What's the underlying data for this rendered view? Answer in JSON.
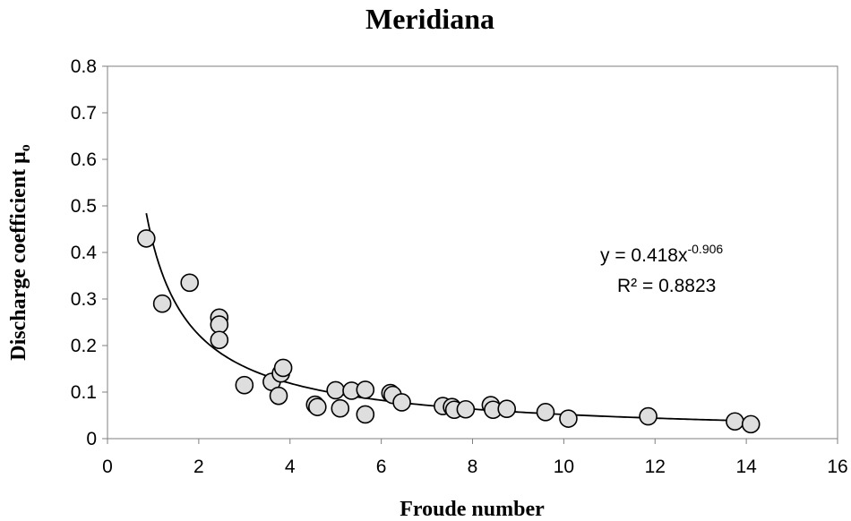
{
  "chart_data": {
    "type": "scatter",
    "title": "Meridiana",
    "xlabel": "Froude number",
    "ylabel": "Discharge coefficient μ",
    "ylabel_subscript": "o",
    "xlim": [
      0,
      16
    ],
    "ylim": [
      0,
      0.8
    ],
    "xticks": [
      "0",
      "2",
      "4",
      "6",
      "8",
      "10",
      "12",
      "14",
      "16"
    ],
    "yticks": [
      "0",
      "0.1",
      "0.2",
      "0.3",
      "0.4",
      "0.5",
      "0.6",
      "0.7",
      "0.8"
    ],
    "grid": false,
    "legend": "none",
    "marker_fill": "#dedede",
    "marker_stroke": "#000000",
    "series": [
      {
        "points": [
          {
            "x": 0.85,
            "y": 0.43
          },
          {
            "x": 1.2,
            "y": 0.29
          },
          {
            "x": 1.8,
            "y": 0.335
          },
          {
            "x": 2.45,
            "y": 0.26
          },
          {
            "x": 2.45,
            "y": 0.245
          },
          {
            "x": 2.45,
            "y": 0.212
          },
          {
            "x": 3.0,
            "y": 0.115
          },
          {
            "x": 3.6,
            "y": 0.122
          },
          {
            "x": 3.75,
            "y": 0.092
          },
          {
            "x": 3.8,
            "y": 0.14
          },
          {
            "x": 3.85,
            "y": 0.152
          },
          {
            "x": 4.55,
            "y": 0.073
          },
          {
            "x": 4.6,
            "y": 0.068
          },
          {
            "x": 5.0,
            "y": 0.104
          },
          {
            "x": 5.1,
            "y": 0.065
          },
          {
            "x": 5.35,
            "y": 0.103
          },
          {
            "x": 5.65,
            "y": 0.105
          },
          {
            "x": 5.65,
            "y": 0.052
          },
          {
            "x": 6.2,
            "y": 0.098
          },
          {
            "x": 6.25,
            "y": 0.094
          },
          {
            "x": 6.45,
            "y": 0.078
          },
          {
            "x": 7.35,
            "y": 0.07
          },
          {
            "x": 7.55,
            "y": 0.068
          },
          {
            "x": 7.6,
            "y": 0.062
          },
          {
            "x": 7.85,
            "y": 0.063
          },
          {
            "x": 8.4,
            "y": 0.072
          },
          {
            "x": 8.45,
            "y": 0.062
          },
          {
            "x": 8.75,
            "y": 0.064
          },
          {
            "x": 9.6,
            "y": 0.057
          },
          {
            "x": 10.1,
            "y": 0.043
          },
          {
            "x": 11.85,
            "y": 0.048
          },
          {
            "x": 13.75,
            "y": 0.037
          },
          {
            "x": 14.1,
            "y": 0.031
          }
        ]
      }
    ],
    "trendline": {
      "type": "power",
      "coefficient": 0.418,
      "exponent": -0.906,
      "x_range": [
        0.85,
        14.1
      ],
      "color": "#000000"
    },
    "annotations": {
      "equation_prefix": "y = 0.418x",
      "equation_exponent": "-0.906",
      "r_squared": "R² = 0.8823"
    }
  }
}
